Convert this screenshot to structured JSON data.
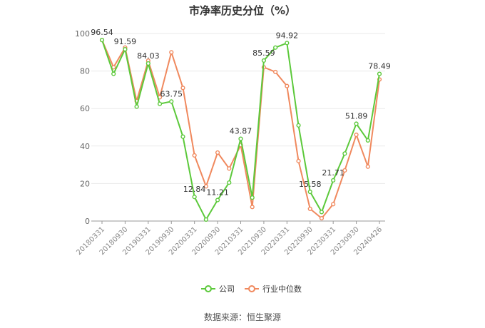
{
  "chart_data": {
    "type": "line",
    "title": "市净率历史分位（%）",
    "x": [
      "20180331",
      "20180630",
      "20180930",
      "20181231",
      "20190331",
      "20190630",
      "20190930",
      "20191231",
      "20200331",
      "20200630",
      "20200930",
      "20201231",
      "20210331",
      "20210630",
      "20210930",
      "20211231",
      "20220331",
      "20220630",
      "20220930",
      "20221231",
      "20230331",
      "20230630",
      "20230930",
      "20231231",
      "20240426"
    ],
    "x_tick_labels": [
      "20180331",
      "20180930",
      "20190331",
      "20190930",
      "20200331",
      "20200930",
      "20210331",
      "20210930",
      "20220331",
      "20220930",
      "20230331",
      "20230930",
      "20240426"
    ],
    "ylim": [
      0,
      100
    ],
    "yticks": [
      0,
      20,
      40,
      60,
      80,
      100
    ],
    "grid": true,
    "legend": "bottom",
    "series": [
      {
        "name": "公司",
        "color": "#5cc93b",
        "values": [
          96.54,
          78.5,
          91.59,
          61.0,
          84.03,
          62.5,
          63.75,
          45.0,
          12.84,
          0.8,
          11.21,
          20.5,
          43.87,
          12.5,
          85.59,
          92.5,
          94.92,
          51.0,
          15.58,
          4.8,
          21.71,
          36.0,
          51.89,
          43.0,
          78.49
        ],
        "labels": {
          "0": "96.54",
          "2": "91.59",
          "4": "84.03",
          "6": "63.75",
          "8": "12.84",
          "10": "11.21",
          "12": "43.87",
          "14": "85.59",
          "16": "94.92",
          "18": "15.58",
          "20": "21.71",
          "22": "51.89",
          "24": "78.49"
        }
      },
      {
        "name": "行业中位数",
        "color": "#f0895e",
        "values": [
          96.5,
          82.0,
          92.5,
          64.0,
          85.5,
          66.0,
          90.0,
          71.0,
          35.0,
          18.5,
          36.5,
          28.0,
          40.5,
          7.5,
          82.0,
          79.5,
          72.0,
          32.0,
          6.5,
          1.5,
          9.0,
          27.0,
          46.0,
          29.0,
          75.5
        ]
      }
    ]
  },
  "source_text": "数据来源：恒生聚源"
}
